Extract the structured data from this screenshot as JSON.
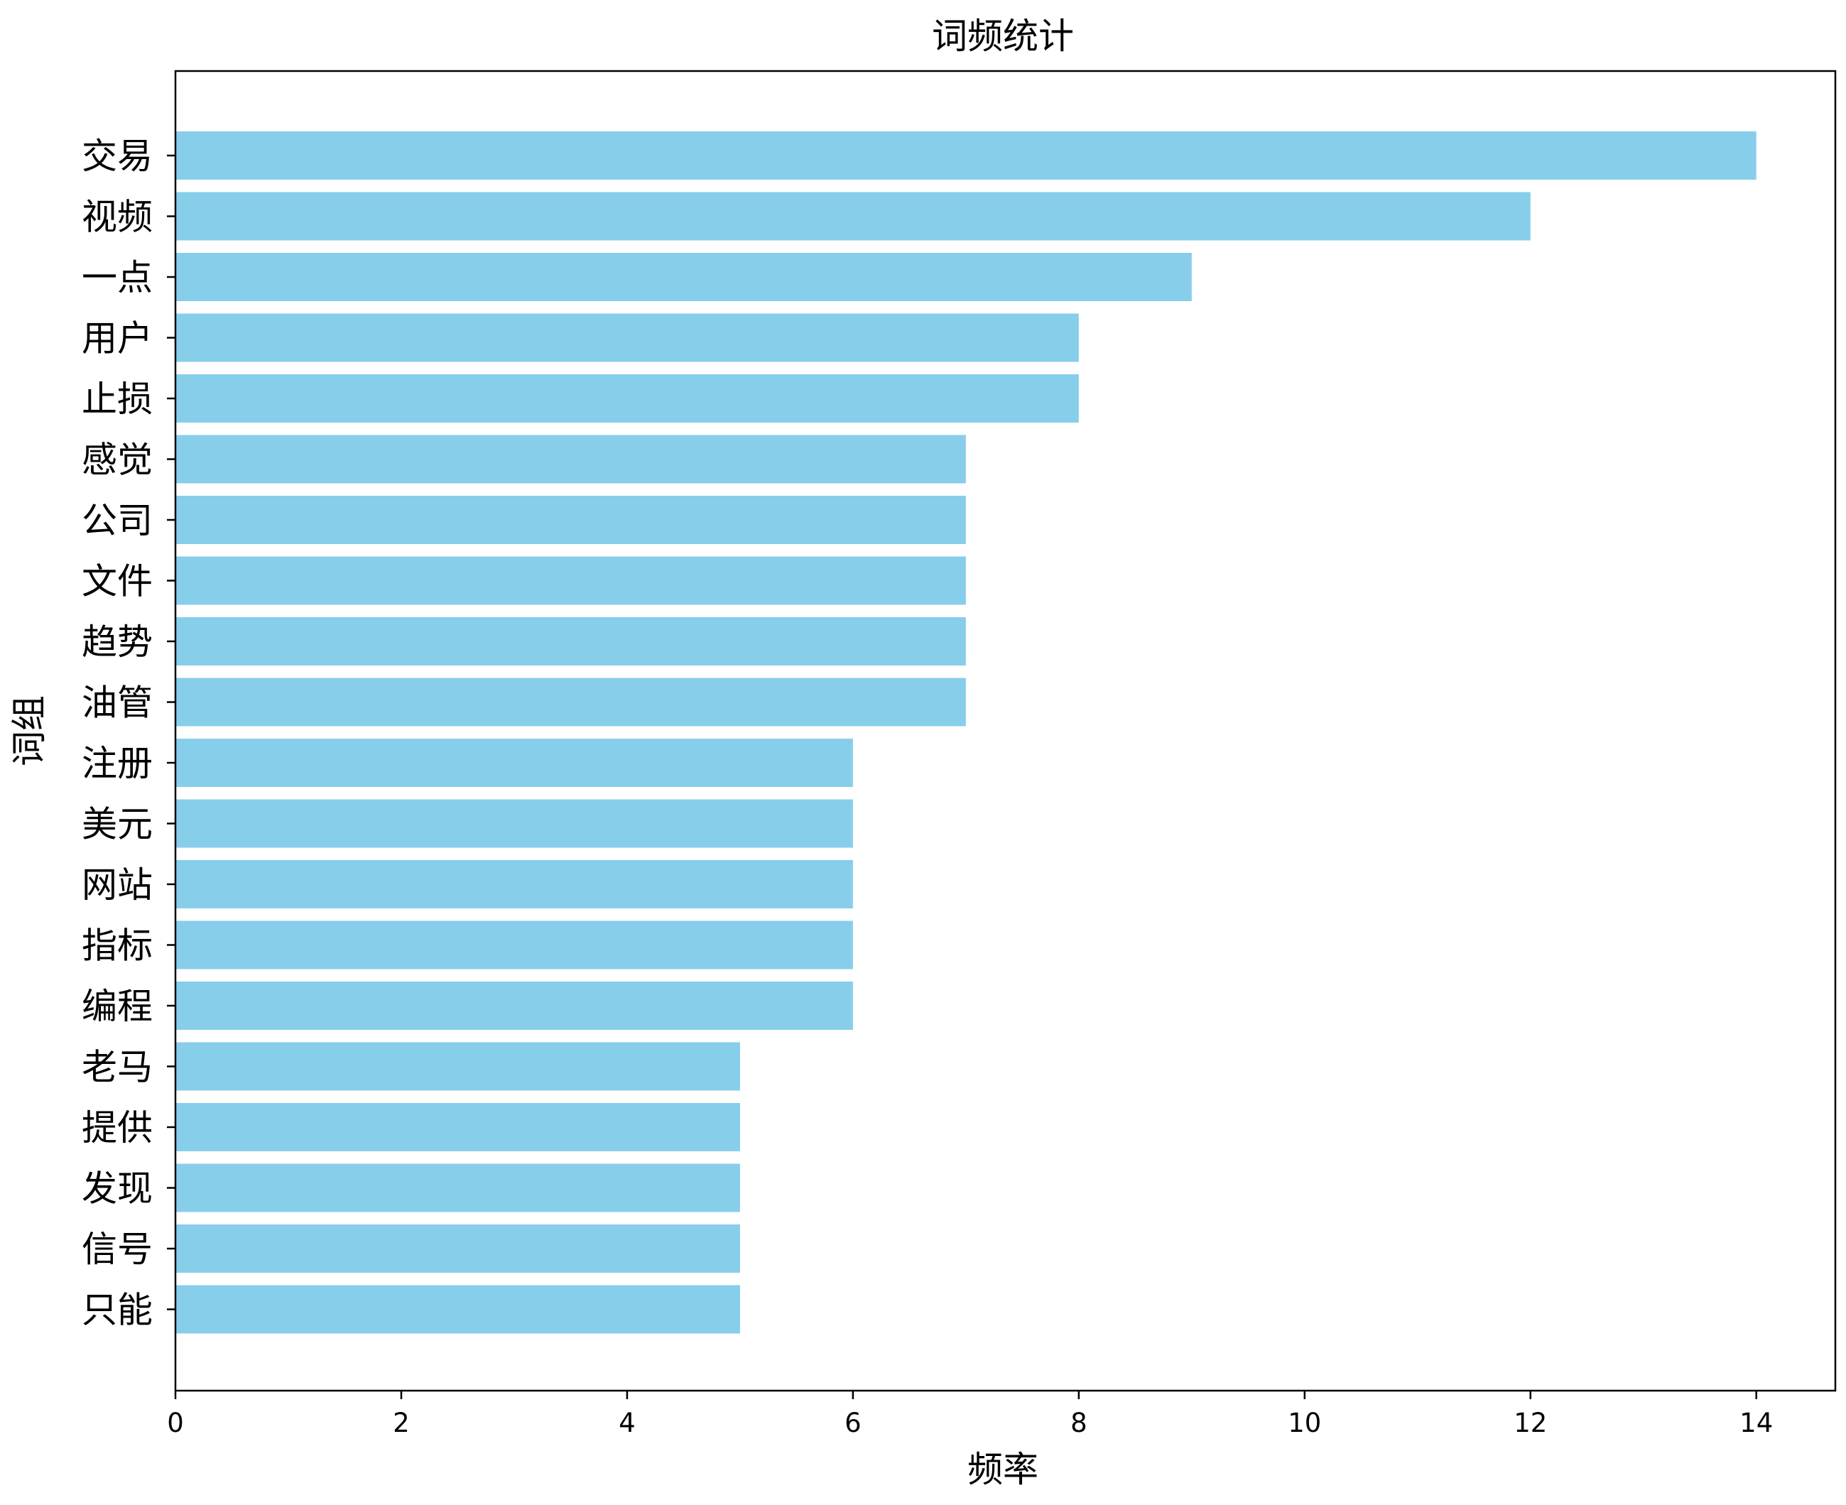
{
  "chart_data": {
    "type": "bar",
    "orientation": "horizontal",
    "title": "词频统计",
    "xlabel": "频率",
    "ylabel": "词组",
    "xlim": [
      0,
      14.7
    ],
    "x_ticks": [
      0,
      2,
      4,
      6,
      8,
      10,
      12,
      14
    ],
    "grid": false,
    "legend": "none",
    "bar_color": "#87ceeb",
    "categories": [
      "交易",
      "视频",
      "一点",
      "用户",
      "止损",
      "感觉",
      "公司",
      "文件",
      "趋势",
      "油管",
      "注册",
      "美元",
      "网站",
      "指标",
      "编程",
      "老马",
      "提供",
      "发现",
      "信号",
      "只能"
    ],
    "values": [
      14,
      12,
      9,
      8,
      8,
      7,
      7,
      7,
      7,
      7,
      6,
      6,
      6,
      6,
      6,
      5,
      5,
      5,
      5,
      5
    ]
  }
}
